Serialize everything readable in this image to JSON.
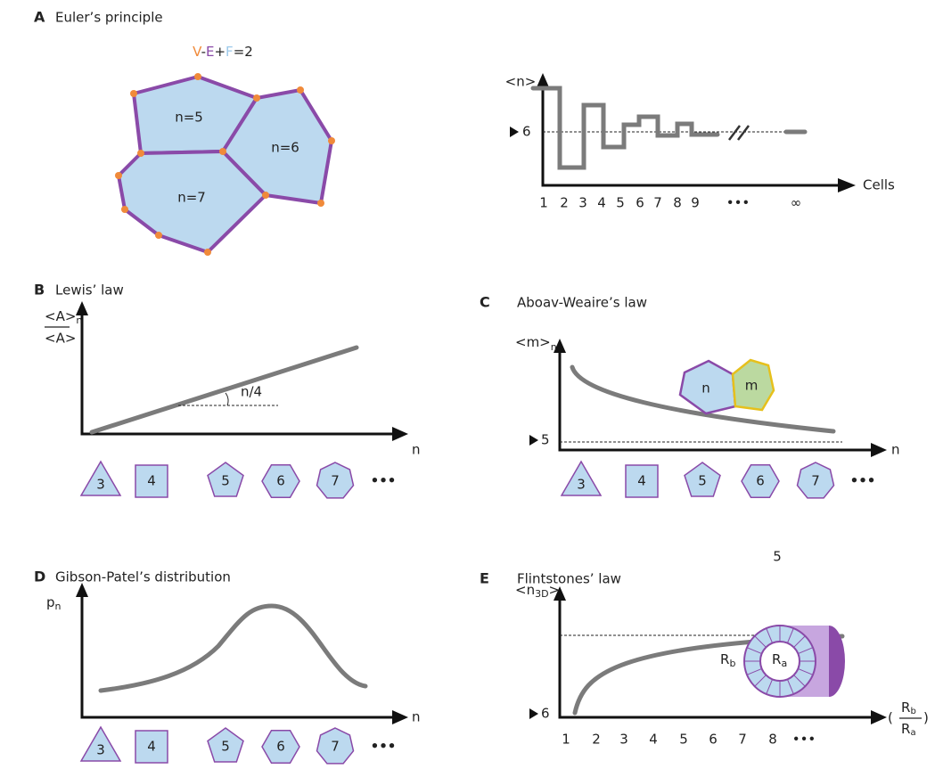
{
  "panel_a": {
    "letter": "A",
    "title": "Euler’s principle",
    "formula": {
      "v": "V",
      "minus": "-",
      "e": "E",
      "plus": "+",
      "f": "F",
      "rest": "=2"
    },
    "cells": [
      "n=5",
      "n=6",
      "n=7"
    ],
    "chart": {
      "y_label": "<n>",
      "reference": "6",
      "x_labels": [
        "1",
        "2",
        "3",
        "4",
        "5",
        "6",
        "7",
        "8",
        "9",
        "•••",
        "∞"
      ],
      "x_label": "Cells"
    }
  },
  "panel_b": {
    "letter": "B",
    "title": "Lewis’ law",
    "y_label": {
      "num": "<A>",
      "num_sub": "n",
      "den": "<A>"
    },
    "slope": "n/4",
    "x_label": "n",
    "shapes": [
      "3",
      "4",
      "5",
      "6",
      "7",
      "•••"
    ]
  },
  "panel_c": {
    "letter": "C",
    "title": "Aboav-Weaire’s law",
    "y_label": {
      "main": "<m>",
      "sub": "n"
    },
    "reference": "5",
    "cells": [
      "n",
      "m"
    ],
    "x_label": "n",
    "shapes": [
      "3",
      "4",
      "5",
      "6",
      "7",
      "•••"
    ]
  },
  "page_number": "5",
  "panel_d": {
    "letter": "D",
    "title": "Gibson-Patel’s distribution",
    "y_label": {
      "main": "p",
      "sub": "n"
    },
    "x_label": "n",
    "shapes": [
      "3",
      "4",
      "5",
      "6",
      "7",
      "•••"
    ]
  },
  "panel_e": {
    "letter": "E",
    "title": "Flintstones’ law",
    "y_label": {
      "main": "<n",
      "sub": "3D",
      "end": ">"
    },
    "reference": "6",
    "x_labels": [
      "1",
      "2",
      "3",
      "4",
      "5",
      "6",
      "7",
      "8",
      "•••"
    ],
    "radii": {
      "outer": "R",
      "outer_sub": "b",
      "inner": "R",
      "inner_sub": "a"
    },
    "x_label": {
      "open": "(",
      "num": "R",
      "num_sub": "b",
      "den": "R",
      "den_sub": "a",
      "close": ")"
    }
  }
}
